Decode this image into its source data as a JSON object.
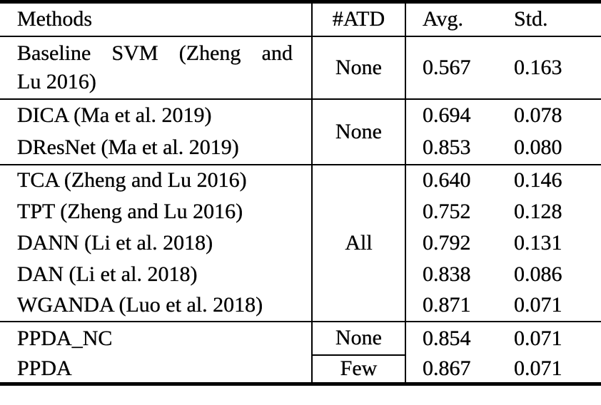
{
  "colors": {
    "background": "#ffffff",
    "text": "#000000",
    "rule": "#000000"
  },
  "table": {
    "type": "table",
    "headers": {
      "methods": "Methods",
      "atd": "#ATD",
      "avg": "Avg.",
      "std": "Std."
    },
    "rows": [
      {
        "method": "Baseline SVM (Zheng and Lu 2016)",
        "method_lines": [
          "Baseline SVM (Zheng and",
          "Lu 2016)"
        ],
        "atd": "None",
        "avg": "0.567",
        "std": "0.163"
      },
      {
        "method": "DICA (Ma et al. 2019)",
        "atd": "None",
        "avg": "0.694",
        "std": "0.078"
      },
      {
        "method": "DResNet (Ma et al. 2019)",
        "avg": "0.853",
        "std": "0.080"
      },
      {
        "method": "TCA (Zheng and Lu 2016)",
        "atd": "All",
        "avg": "0.640",
        "std": "0.146"
      },
      {
        "method": "TPT (Zheng and Lu 2016)",
        "avg": "0.752",
        "std": "0.128"
      },
      {
        "method": "DANN (Li et al. 2018)",
        "avg": "0.792",
        "std": "0.131"
      },
      {
        "method": "DAN (Li et al. 2018)",
        "avg": "0.838",
        "std": "0.086"
      },
      {
        "method": "WGANDA (Luo et al. 2018)",
        "avg": "0.871",
        "std": "0.071"
      },
      {
        "method": "PPDA_NC",
        "atd": "None",
        "avg": "0.854",
        "std": "0.071"
      },
      {
        "method": "PPDA",
        "atd": "Few",
        "avg": "0.867",
        "std": "0.071"
      }
    ]
  }
}
